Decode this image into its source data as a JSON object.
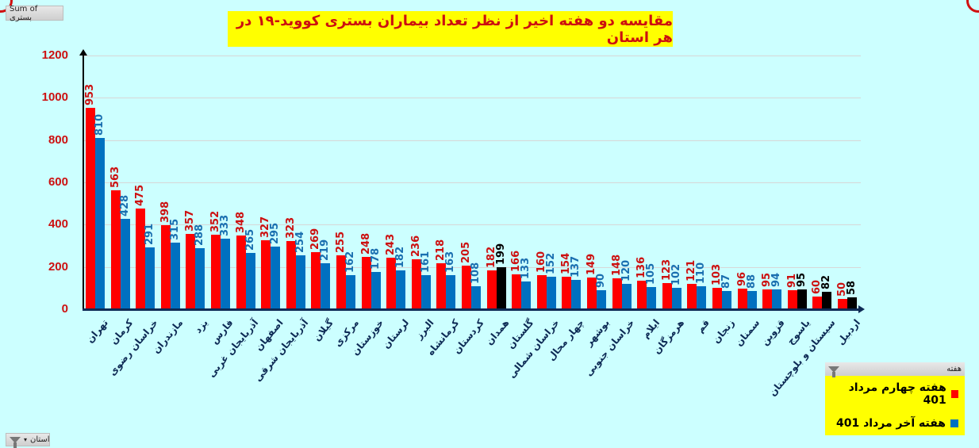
{
  "header": {
    "value_field_button": "Sum of بستری",
    "title": "مقایسه دو هفته اخیر از نظر تعداد بیماران بستری کووید-۱۹ در هر استان"
  },
  "filters": {
    "category_field_button": "استان",
    "legend_field_button": "هفته"
  },
  "colors": {
    "series1": "#ff0000",
    "series2": "#0070c0",
    "highlight": "#000000",
    "background": "#ccffff",
    "title_bg": "#ffff00",
    "title_text": "#cc1010",
    "axis_label": "#0d2a55"
  },
  "legend": {
    "items": [
      {
        "label": "هفته چهارم مرداد 401",
        "color": "#ff0000"
      },
      {
        "label": "هفته آخر مرداد 401",
        "color": "#0070c0"
      }
    ]
  },
  "chart_data": {
    "type": "bar",
    "title": "مقایسه دو هفته اخیر از نظر تعداد بیماران بستری کووید-۱۹ در هر استان",
    "xlabel": "استان",
    "ylabel": "Sum of بستری",
    "ylim": [
      0,
      1200
    ],
    "yticks": [
      0,
      200,
      400,
      600,
      800,
      1000,
      1200
    ],
    "grid": true,
    "legend_position": "bottom-right",
    "categories": [
      "تهران",
      "کرمان",
      "خراسان رضوی",
      "مازندران",
      "یزد",
      "فارس",
      "آذربایجان غربی",
      "اصفهان",
      "آذربایجان شرقی",
      "گیلان",
      "مرکزی",
      "خوزستان",
      "لرستان",
      "البرز",
      "کرمانشاه",
      "کردستان",
      "همدان",
      "گلستان",
      "خراسان شمالی",
      "چهار محال",
      "بوشهر",
      "خراسان جنوبی",
      "ایلام",
      "هرمزگان",
      "قم",
      "زنجان",
      "سمنان",
      "قزوین",
      "یاسوج",
      "سیستان و بلوچستان",
      "اردبیل"
    ],
    "series": [
      {
        "name": "هفته چهارم مرداد 401",
        "color": "#ff0000",
        "values": [
          953,
          563,
          475,
          398,
          357,
          352,
          348,
          327,
          323,
          269,
          255,
          248,
          243,
          236,
          218,
          205,
          182,
          166,
          160,
          154,
          149,
          148,
          136,
          123,
          121,
          103,
          96,
          95,
          91,
          60,
          50
        ]
      },
      {
        "name": "هفته آخر مرداد 401",
        "color": "#0070c0",
        "values": [
          810,
          428,
          291,
          315,
          288,
          333,
          265,
          295,
          254,
          219,
          162,
          178,
          182,
          161,
          163,
          108,
          199,
          133,
          152,
          137,
          90,
          120,
          105,
          102,
          110,
          87,
          88,
          94,
          95,
          82,
          58
        ]
      }
    ],
    "annotations": "Second-series bars where the value increased vs. the previous week are drawn in black (همدان 199, یاسوج 95, سیستان و بلوچستان 82, اردبیل 58)"
  }
}
